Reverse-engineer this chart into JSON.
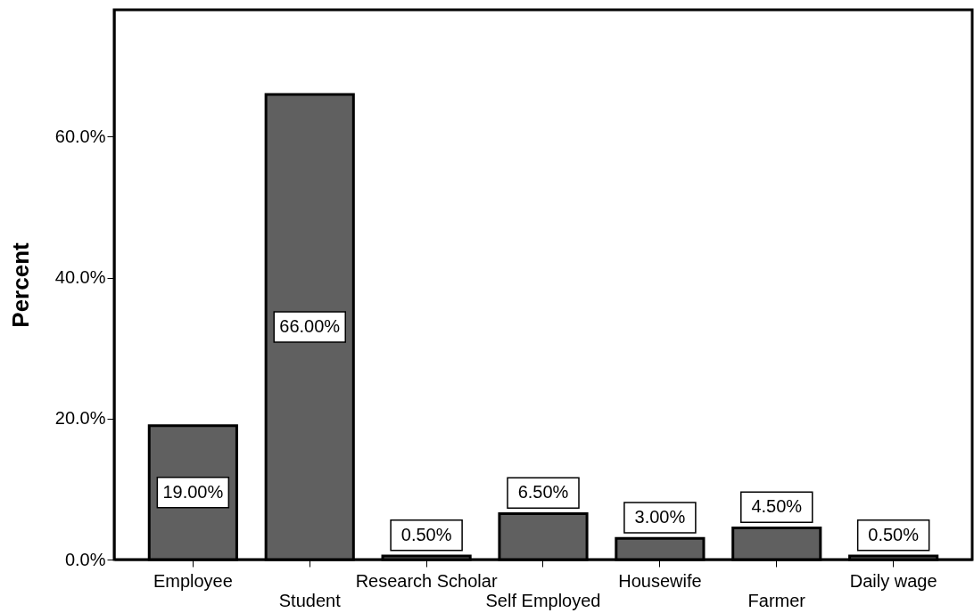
{
  "chart_data": {
    "type": "bar",
    "ylabel": "Percent",
    "categories": [
      "Employee",
      "Student",
      "Research Scholar",
      "Self Employed",
      "Housewife",
      "Farmer",
      "Daily wage"
    ],
    "values": [
      19.0,
      66.0,
      0.5,
      6.5,
      3.0,
      4.5,
      0.5
    ],
    "value_labels": [
      "19.00%",
      "66.00%",
      "0.50%",
      "6.50%",
      "3.00%",
      "4.50%",
      "0.50%"
    ],
    "color": "#606060",
    "ylim": [
      0,
      78
    ],
    "yticks": [
      {
        "value": 0,
        "label": "0.0%"
      },
      {
        "value": 20,
        "label": "20.0%"
      },
      {
        "value": 40,
        "label": "40.0%"
      },
      {
        "value": 60,
        "label": "60.0%"
      }
    ],
    "grid": false
  }
}
